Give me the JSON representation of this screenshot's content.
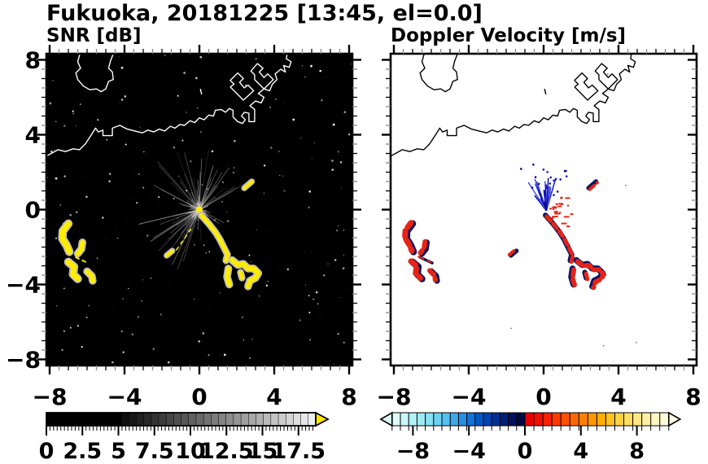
{
  "figure": {
    "title": "Fukuoka, 20181225 [13:45, el=0.0]",
    "background": "#ffffff",
    "text_color": "#000000"
  },
  "panels": {
    "snr": {
      "subtitle": "SNR [dB]",
      "plot_bg": "#000000",
      "coast_color": "#ffffff",
      "axis": {
        "range": [
          -8,
          8
        ],
        "label_values": [
          -8,
          -4,
          0,
          4,
          8
        ],
        "x_tick_labels": [
          "−8",
          "−4",
          "0",
          "4",
          "8"
        ],
        "y_tick_labels": [
          "8",
          "4",
          "0",
          "−4",
          "−8"
        ],
        "y_label_values": [
          8,
          4,
          0,
          -4,
          -8
        ],
        "minor_step": 0.5
      },
      "colorbar": {
        "unit_labels": [
          "0",
          "2.5",
          "5",
          "7.5",
          "10",
          "12.5",
          "15",
          "17.5"
        ],
        "label_values": [
          0,
          2.5,
          5,
          7.5,
          10,
          12.5,
          15,
          17.5
        ],
        "range": [
          0,
          18.7
        ],
        "arrow_color": "#ffe800",
        "segment_colors": [
          "#000000",
          "#000000",
          "#000000",
          "#000000",
          "#000000",
          "#000000",
          "#000000",
          "#000000",
          "#000000",
          "#000000",
          "#0f0f0f",
          "#181818",
          "#212121",
          "#2a2a2a",
          "#333333",
          "#3c3c3c",
          "#454545",
          "#4e4e4e",
          "#575757",
          "#606060",
          "#696969",
          "#727272",
          "#7b7b7b",
          "#848484",
          "#8d8d8d",
          "#969696",
          "#9f9f9f",
          "#a8a8a8",
          "#b1b1b1",
          "#bababa",
          "#c3c3c3",
          "#cccccc",
          "#d5d5d5",
          "#dedede",
          "#e7e7e7",
          "#f0f0f0"
        ]
      }
    },
    "doppler": {
      "subtitle": "Doppler Velocity [m/s]",
      "plot_bg": "#ffffff",
      "coast_color": "#000000",
      "axis": {
        "range": [
          -8,
          8
        ],
        "label_values": [
          -8,
          -4,
          0,
          4,
          8
        ],
        "x_tick_labels": [
          "−8",
          "−4",
          "0",
          "4",
          "8"
        ],
        "y_tick_labels": [
          "8",
          "4",
          "0",
          "−4",
          "−8"
        ],
        "y_label_values": [
          8,
          4,
          0,
          -4,
          -8
        ],
        "minor_step": 0.5
      },
      "colorbar": {
        "unit_labels": [
          "−8",
          "−4",
          "0",
          "4",
          "8"
        ],
        "label_values": [
          -8,
          -4,
          0,
          4,
          8
        ],
        "range": [
          -9.5,
          10.3
        ],
        "left_arrow_color": "#d9fbfb",
        "right_arrow_color": "#fffde4",
        "neg_colors": [
          "#dffbfb",
          "#c9f6f8",
          "#b3f1f7",
          "#9cebf5",
          "#85e1f3",
          "#6dd2f1",
          "#55bfee",
          "#3da8ea",
          "#268ee4",
          "#1072da",
          "#0058c8",
          "#0042b2",
          "#002f96",
          "#001f78",
          "#00125a",
          "#000a40"
        ],
        "pos_colors": [
          "#e80000",
          "#f30d00",
          "#fa2000",
          "#ff3800",
          "#ff5000",
          "#ff6800",
          "#ff8000",
          "#ff9800",
          "#ffae00",
          "#ffc21e",
          "#ffd23f",
          "#ffde62",
          "#ffe885",
          "#ffefa5",
          "#fff5c2",
          "#fff9d8"
        ]
      }
    }
  },
  "chart_data": {
    "type": "heatmap",
    "title": "Fukuoka, 20181225 [13:45, el=0.0]",
    "x_range": [
      -8,
      8
    ],
    "y_range": [
      -8,
      8
    ],
    "radar_center": [
      0,
      0
    ],
    "subplots": [
      {
        "title": "SNR [dB]",
        "colorbar_range": [
          0,
          17.5
        ],
        "colorbar_ticks": [
          0,
          2.5,
          5,
          7.5,
          10,
          12.5,
          15,
          17.5
        ],
        "background": "black"
      },
      {
        "title": "Doppler Velocity [m/s]",
        "colorbar_range": [
          -8,
          8
        ],
        "colorbar_ticks": [
          -8,
          -4,
          0,
          4,
          8
        ],
        "background": "white"
      }
    ],
    "coastline": [
      [
        [
          -6.35,
          8.45
        ],
        [
          -6.5,
          7.9
        ],
        [
          -6.35,
          7.55
        ],
        [
          -6.6,
          7.3
        ],
        [
          -6.5,
          6.95
        ],
        [
          -6.2,
          6.6
        ],
        [
          -5.85,
          6.4
        ],
        [
          -5.5,
          6.45
        ],
        [
          -5.25,
          6.3
        ],
        [
          -5.0,
          6.45
        ],
        [
          -4.85,
          6.85
        ],
        [
          -4.6,
          6.95
        ],
        [
          -4.65,
          7.35
        ],
        [
          -4.85,
          7.55
        ],
        [
          -4.75,
          7.95
        ],
        [
          -4.55,
          8.45
        ]
      ],
      [
        [
          -8.4,
          2.75
        ],
        [
          -8.0,
          2.95
        ],
        [
          -7.55,
          3.2
        ],
        [
          -7.15,
          3.1
        ],
        [
          -6.75,
          3.25
        ],
        [
          -6.4,
          3.2
        ],
        [
          -6.1,
          3.5
        ],
        [
          -5.8,
          3.95
        ],
        [
          -5.55,
          4.35
        ],
        [
          -5.4,
          4.15
        ],
        [
          -5.15,
          4.25
        ],
        [
          -5.15,
          3.95
        ],
        [
          -4.65,
          3.95
        ],
        [
          -4.65,
          4.35
        ],
        [
          -4.25,
          4.5
        ],
        [
          -3.85,
          4.3
        ],
        [
          -3.45,
          4.2
        ],
        [
          -3.05,
          4.1
        ],
        [
          -2.75,
          4.25
        ],
        [
          -2.45,
          4.15
        ],
        [
          -2.15,
          4.3
        ],
        [
          -1.85,
          4.2
        ],
        [
          -1.55,
          4.45
        ],
        [
          -1.3,
          4.35
        ],
        [
          -1.05,
          4.55
        ],
        [
          -0.8,
          4.5
        ],
        [
          -0.5,
          4.75
        ],
        [
          -0.25,
          4.65
        ],
        [
          0.0,
          4.9
        ],
        [
          0.25,
          4.8
        ],
        [
          0.5,
          5.05
        ],
        [
          0.75,
          5.0
        ],
        [
          0.85,
          5.3
        ],
        [
          1.15,
          5.35
        ],
        [
          1.4,
          5.2
        ],
        [
          1.6,
          5.4
        ],
        [
          1.8,
          5.3
        ],
        [
          1.8,
          4.95
        ],
        [
          2.05,
          4.7
        ],
        [
          2.3,
          4.6
        ],
        [
          2.45,
          4.8
        ],
        [
          2.25,
          5.0
        ],
        [
          2.4,
          5.2
        ],
        [
          2.65,
          5.15
        ],
        [
          2.65,
          4.7
        ],
        [
          2.95,
          4.7
        ],
        [
          2.95,
          5.35
        ],
        [
          2.7,
          5.55
        ],
        [
          3.0,
          5.8
        ],
        [
          3.3,
          5.7
        ],
        [
          3.45,
          6.0
        ],
        [
          3.15,
          6.2
        ],
        [
          3.45,
          6.45
        ],
        [
          3.75,
          6.35
        ],
        [
          3.9,
          6.7
        ],
        [
          4.15,
          6.95
        ],
        [
          4.05,
          7.25
        ],
        [
          4.35,
          7.5
        ],
        [
          4.6,
          7.35
        ],
        [
          4.5,
          7.7
        ],
        [
          4.8,
          7.6
        ],
        [
          4.9,
          7.9
        ],
        [
          4.65,
          8.05
        ],
        [
          4.7,
          8.45
        ]
      ],
      [
        [
          1.65,
          6.55
        ],
        [
          2.35,
          5.85
        ],
        [
          2.9,
          6.35
        ],
        [
          2.6,
          6.65
        ],
        [
          2.4,
          6.5
        ],
        [
          2.15,
          6.8
        ],
        [
          2.35,
          7.0
        ],
        [
          2.05,
          7.3
        ],
        [
          1.65,
          6.9
        ],
        [
          1.85,
          6.7
        ],
        [
          1.65,
          6.55
        ]
      ],
      [
        [
          2.95,
          6.95
        ],
        [
          3.45,
          6.45
        ],
        [
          3.95,
          6.95
        ],
        [
          3.65,
          7.25
        ],
        [
          3.45,
          7.05
        ],
        [
          3.2,
          7.35
        ],
        [
          3.4,
          7.55
        ],
        [
          3.1,
          7.8
        ],
        [
          2.75,
          7.4
        ],
        [
          2.95,
          7.2
        ],
        [
          2.95,
          6.95
        ]
      ],
      [
        [
          0.05,
          6.45
        ],
        [
          0.12,
          6.15
        ]
      ]
    ],
    "echo_chains": [
      {
        "pts": [
          [
            -7.0,
            -0.75
          ],
          [
            -7.3,
            -1.15
          ],
          [
            -7.32,
            -1.55
          ],
          [
            -7.1,
            -1.9
          ],
          [
            -6.95,
            -2.25
          ]
        ],
        "w": 7,
        "group": "west"
      },
      {
        "pts": [
          [
            -6.25,
            -1.75
          ],
          [
            -6.3,
            -2.1
          ],
          [
            -6.5,
            -2.35
          ]
        ],
        "w": 6,
        "group": "west"
      },
      {
        "pts": [
          [
            -6.6,
            -2.55
          ],
          [
            -5.95,
            -2.85
          ]
        ],
        "w": 2,
        "group": "west"
      },
      {
        "pts": [
          [
            -7.0,
            -2.8
          ],
          [
            -6.7,
            -3.05
          ],
          [
            -6.75,
            -3.45
          ],
          [
            -6.5,
            -3.7
          ]
        ],
        "w": 7,
        "group": "west"
      },
      {
        "pts": [
          [
            -6.0,
            -3.3
          ],
          [
            -5.75,
            -3.55
          ],
          [
            -5.7,
            -3.8
          ]
        ],
        "w": 6,
        "group": "west"
      },
      {
        "pts": [
          [
            0.1,
            -0.3
          ],
          [
            0.5,
            -0.75
          ],
          [
            0.85,
            -1.2
          ],
          [
            1.1,
            -1.6
          ],
          [
            1.3,
            -2.0
          ],
          [
            1.5,
            -2.4
          ],
          [
            1.42,
            -2.72
          ]
        ],
        "w": 5,
        "group": "diag"
      },
      {
        "pts": [
          [
            1.75,
            -2.7
          ],
          [
            2.05,
            -2.95
          ],
          [
            2.35,
            -2.9
          ],
          [
            2.6,
            -3.15
          ],
          [
            2.9,
            -3.15
          ],
          [
            3.15,
            -3.4
          ],
          [
            3.0,
            -3.65
          ],
          [
            2.7,
            -3.8
          ],
          [
            2.6,
            -4.1
          ]
        ],
        "w": 6,
        "group": "diag"
      },
      {
        "pts": [
          [
            1.55,
            -3.15
          ],
          [
            1.48,
            -3.6
          ],
          [
            1.6,
            -4.0
          ]
        ],
        "w": 6,
        "group": "diag"
      },
      {
        "pts": [
          [
            2.2,
            -3.35
          ],
          [
            2.28,
            -3.65
          ]
        ],
        "w": 5,
        "group": "diag"
      },
      {
        "pts": [
          [
            2.4,
            1.15
          ],
          [
            2.8,
            1.5
          ]
        ],
        "w": 4,
        "group": "diag"
      },
      {
        "pts": [
          [
            -1.75,
            -2.45
          ],
          [
            -1.45,
            -2.2
          ]
        ],
        "w": 4,
        "group": "west"
      },
      {
        "pts": [
          [
            -0.45,
            -1.05
          ],
          [
            -1.3,
            -2.25
          ]
        ],
        "w": 1.5,
        "snr_only": true,
        "group": "west"
      }
    ],
    "snr_fan": {
      "upper_angles": [
        18,
        168
      ],
      "lower_angles": [
        192,
        254
      ],
      "max_len": 3.4,
      "color": "gray"
    },
    "doppler_fan": {
      "apex": [
        0.15,
        -0.05
      ],
      "angles": [
        68,
        132
      ],
      "max_len": 2.0,
      "colors": [
        "#1515cf",
        "#0a0a8c",
        "#4a5ae0"
      ]
    },
    "doppler_specks": {
      "color": "#e52417",
      "angles": [
        -80,
        45
      ],
      "max_dist": 1.4
    }
  }
}
